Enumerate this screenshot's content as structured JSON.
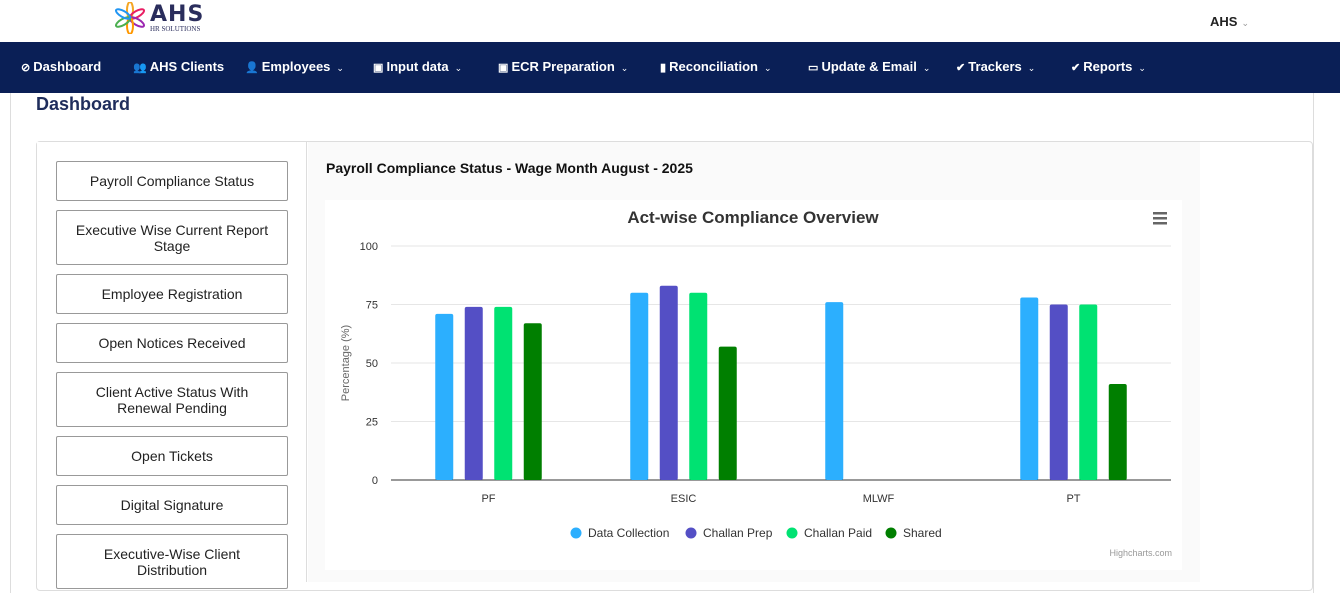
{
  "header": {
    "logo_text": "AHS",
    "logo_sub": "HR SOLUTIONS",
    "user": "AHS"
  },
  "nav": [
    {
      "label": "Dashboard",
      "icon": "dashboard-icon",
      "glyph": "⊘",
      "dropdown": false
    },
    {
      "label": "AHS Clients",
      "icon": "users-icon",
      "glyph": "👥",
      "dropdown": false
    },
    {
      "label": "Employees",
      "icon": "user-icon",
      "glyph": "👤",
      "dropdown": true
    },
    {
      "label": "Input data",
      "icon": "calendar-icon",
      "glyph": "▣",
      "dropdown": true
    },
    {
      "label": "ECR Preparation",
      "icon": "calendar-icon",
      "glyph": "▣",
      "dropdown": true
    },
    {
      "label": "Reconciliation",
      "icon": "clipboard-icon",
      "glyph": "▮",
      "dropdown": true
    },
    {
      "label": "Update & Email",
      "icon": "money-icon",
      "glyph": "▭",
      "dropdown": true
    },
    {
      "label": "Trackers",
      "icon": "check-double-icon",
      "glyph": "✔",
      "dropdown": true
    },
    {
      "label": "Reports",
      "icon": "check-double-icon",
      "glyph": "✔",
      "dropdown": true
    }
  ],
  "page_title": "Dashboard",
  "sidebar_buttons": [
    "Payroll Compliance Status",
    "Executive Wise Current Report Stage",
    "Employee Registration",
    "Open Notices Received",
    "Client Active Status With Renewal Pending",
    "Open Tickets",
    "Digital Signature",
    "Executive-Wise Client Distribution"
  ],
  "panel_title": "Payroll Compliance Status - Wage Month August - 2025",
  "chart_data": {
    "type": "bar",
    "title": "Act-wise Compliance Overview",
    "xlabel": "",
    "ylabel": "Percentage (%)",
    "ylim": [
      0,
      100
    ],
    "yticks": [
      0,
      25,
      50,
      75,
      100
    ],
    "grid": true,
    "categories": [
      "PF",
      "ESIC",
      "MLWF",
      "PT"
    ],
    "series": [
      {
        "name": "Data Collection",
        "color": "#2caffe",
        "values": [
          71,
          80,
          76,
          78
        ]
      },
      {
        "name": "Challan Prep",
        "color": "#544fc5",
        "values": [
          74,
          83,
          0,
          75
        ]
      },
      {
        "name": "Challan Paid",
        "color": "#00e272",
        "values": [
          74,
          80,
          0,
          75
        ]
      },
      {
        "name": "Shared",
        "color": "#007f00",
        "values": [
          67,
          57,
          0,
          41
        ]
      }
    ],
    "legend": "bottom-center",
    "credits": "Highcharts.com"
  }
}
